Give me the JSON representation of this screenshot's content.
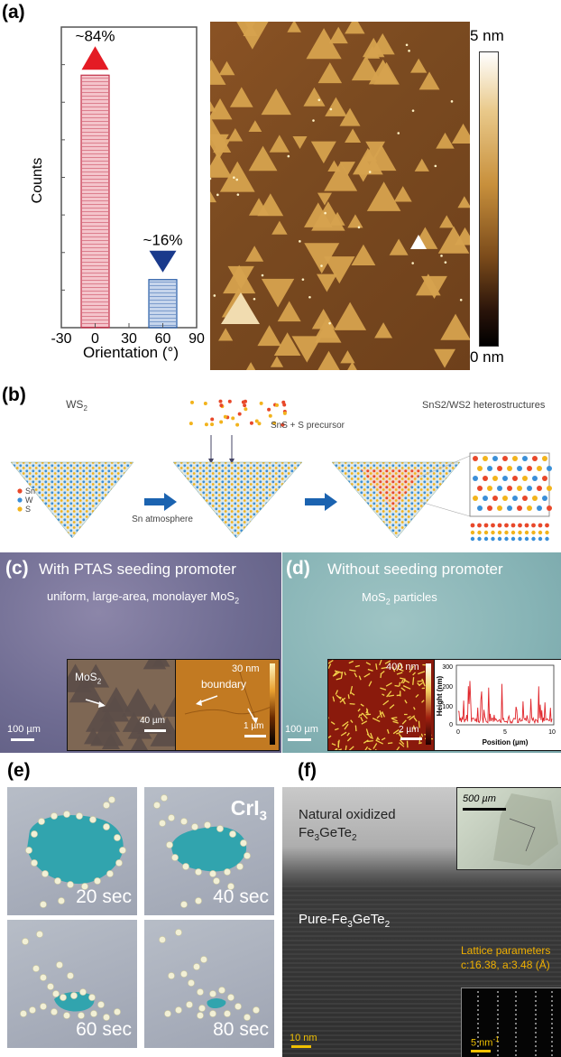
{
  "panel_labels": {
    "a": "(a)",
    "b": "(b)",
    "c": "(c)",
    "d": "(d)",
    "e": "(e)",
    "f": "(f)"
  },
  "chart_data": {
    "type": "bar",
    "categories": [
      "0",
      "60"
    ],
    "values": [
      84,
      16
    ],
    "data_labels": [
      "~84%",
      "~16%"
    ],
    "xlabel": "Orientation (°)",
    "ylabel": "Counts",
    "xticks": [
      "-30",
      "0",
      "30",
      "60",
      "90"
    ],
    "xlim": [
      -30,
      90
    ],
    "ylim": [
      0,
      100
    ],
    "colors": {
      "bar0": "#e0566a",
      "bar1": "#5c86c8",
      "up_marker": "#e41b24",
      "down_marker": "#1a3a8c"
    }
  },
  "afm": {
    "scale_top": "5 nm",
    "scale_bottom": "0 nm"
  },
  "panel_b": {
    "title_left": "WS",
    "title_left_sub": "2",
    "precursor": "SnS + S precursor",
    "arrow1_caption": "Sn atmosphere",
    "title_right": "SnS2/WS2 heterostructures",
    "legend": [
      {
        "label": "Sn",
        "color": "#e8482a"
      },
      {
        "label": "W",
        "color": "#3a8fd8"
      },
      {
        "label": "S",
        "color": "#f2b31c"
      }
    ]
  },
  "panel_c": {
    "title": "With PTAS seeding promoter",
    "subtitle": "uniform, large-area, monolayer MoS",
    "subtitle_sub": "2",
    "scale_main": "100 µm",
    "inset1_label": "MoS",
    "inset1_label_sub": "2",
    "inset1_scale": "40 µm",
    "inset2_label": "boundary",
    "inset2_scale": "1 µm",
    "inset2_colorbar": "30 nm"
  },
  "panel_d": {
    "title": "Without seeding promoter",
    "particles_label": "MoS",
    "particles_label_sub": "2",
    "particles_suffix": " particles",
    "scale_main": "100 µm",
    "inset_scale": "2 µm",
    "inset_colorbar": "400 nm",
    "profile": {
      "ylabel": "Height (nm)",
      "xlabel": "Position (µm)",
      "yticks": [
        "300",
        "200",
        "100",
        "0"
      ],
      "xticks": [
        "0",
        "5",
        "10"
      ]
    }
  },
  "panel_e": {
    "material": "CrI",
    "material_sub": "3",
    "times": [
      "20 sec",
      "40 sec",
      "60 sec",
      "80 sec"
    ]
  },
  "panel_f": {
    "oxide_label_1": "Natural oxidized",
    "oxide_label_2a": "Fe",
    "oxide_label_2b": "3",
    "oxide_label_2c": "GeTe",
    "oxide_label_2d": "2",
    "pure_label_a": "Pure-Fe",
    "pure_label_b": "3",
    "pure_label_c": "GeTe",
    "pure_label_d": "2",
    "inset_scale": "500 µm",
    "lattice_1": "Lattice parameters",
    "lattice_2": "c:16.38, a:3.48 (Å)",
    "scale_main": "10 nm",
    "fft_scale": "5 nm",
    "fft_scale_sup": "-1"
  }
}
